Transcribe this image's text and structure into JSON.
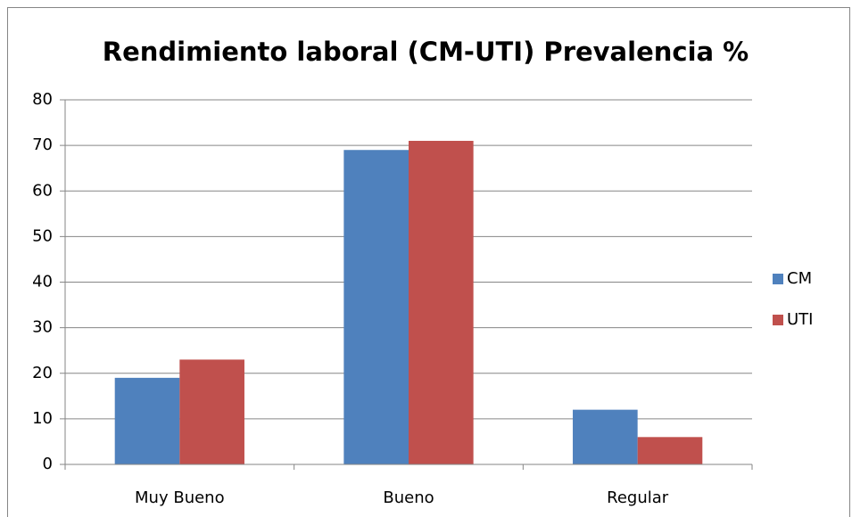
{
  "chart_data": {
    "type": "bar",
    "title": "Rendimiento laboral (CM-UTI) Prevalencia %",
    "categories": [
      "Muy Bueno",
      "Bueno",
      "Regular"
    ],
    "series": [
      {
        "name": "CM",
        "color": "#4f81bd",
        "values": [
          19,
          69,
          12
        ]
      },
      {
        "name": "UTI",
        "color": "#c0504d",
        "values": [
          23,
          71,
          6
        ]
      }
    ],
    "ylim": [
      0,
      80
    ],
    "yticks": [
      0,
      10,
      20,
      30,
      40,
      50,
      60,
      70,
      80
    ],
    "grid": true,
    "legend": "right"
  }
}
